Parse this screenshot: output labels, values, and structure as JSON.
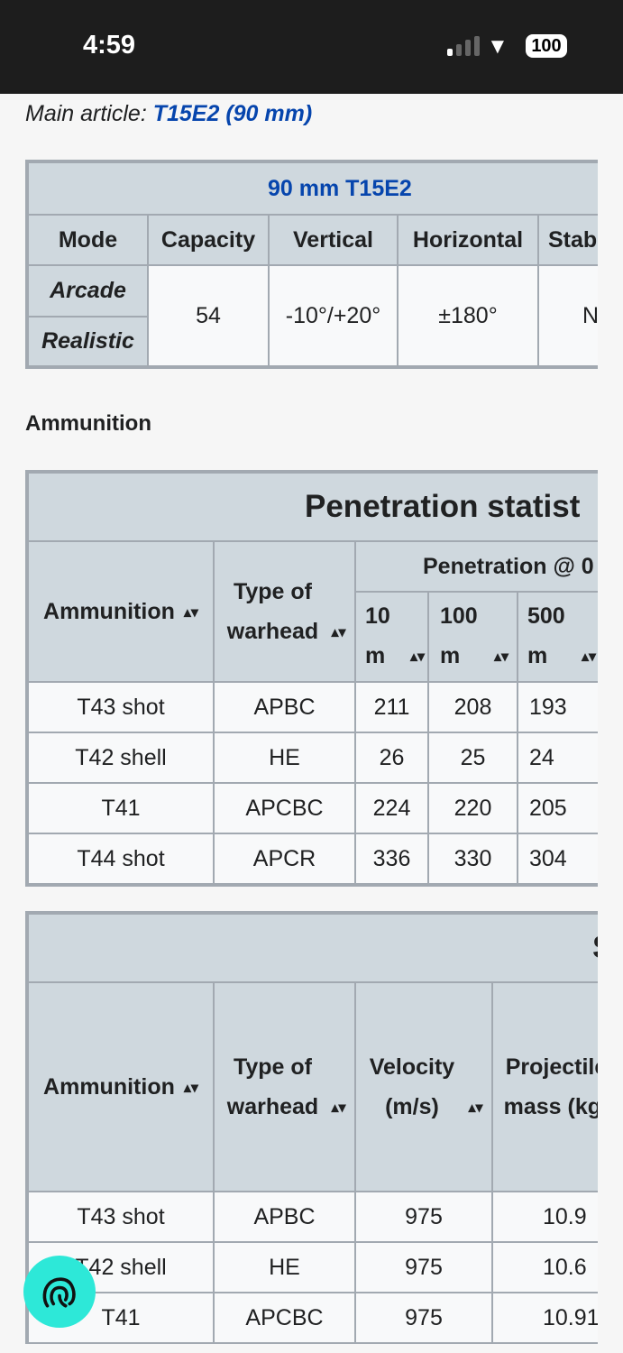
{
  "status": {
    "time": "4:59",
    "battery": "100"
  },
  "main_article": {
    "prefix": "Main article: ",
    "link": "T15E2 (90 mm)"
  },
  "gun_table": {
    "title": "90 mm T15E2",
    "headers": [
      "Mode",
      "Capacity",
      "Vertical",
      "Horizontal",
      "Stab"
    ],
    "modes": [
      "Arcade",
      "Realistic"
    ],
    "capacity": "54",
    "vertical": "-10°/+20°",
    "horizontal": "±180°",
    "stab": "N/"
  },
  "ammunition_heading": "Ammunition",
  "pen_table": {
    "title": "Penetration statist",
    "col_ammo": "Ammunition",
    "col_type": "Type of warhead",
    "col_group": "Penetration @ 0",
    "distances": [
      "10 m",
      "100 m",
      "500 m"
    ],
    "rows": [
      [
        "T43 shot",
        "APBC",
        "211",
        "208",
        "193"
      ],
      [
        "T42 shell",
        "HE",
        "26",
        "25",
        "24"
      ],
      [
        "T41",
        "APCBC",
        "224",
        "220",
        "205"
      ],
      [
        "T44 shot",
        "APCR",
        "336",
        "330",
        "304"
      ]
    ]
  },
  "shell_table": {
    "title": "S",
    "col_ammo": "Ammunition",
    "col_type": "Type of warhead",
    "col_vel": "Velocity (m/s)",
    "col_mass": "Projectile mass (kg)",
    "rows": [
      [
        "T43 shot",
        "APBC",
        "975",
        "10.9"
      ],
      [
        "T42 shell",
        "HE",
        "975",
        "10.6"
      ],
      [
        "T41",
        "APCBC",
        "975",
        "10.91"
      ]
    ]
  }
}
